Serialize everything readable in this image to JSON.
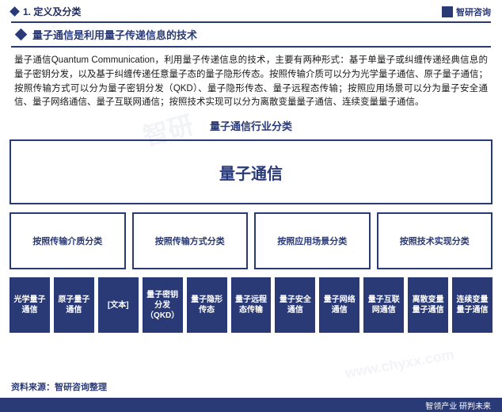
{
  "colors": {
    "brand": "#2a3a77",
    "text": "#1a1a1a",
    "white": "#ffffff"
  },
  "header": {
    "section_number": "1. 定义及分类",
    "brand_name": "智研咨询"
  },
  "subtitle": "量子通信是利用量子传递信息的技术",
  "body": "量子通信Quantum Communication，利用量子传递信息的技术，主要有两种形式：基于单量子或纠缠传递经典信息的量子密钥分发，以及基于纠缠传递任意量子态的量子隐形传态。按照传输介质可以分为光学量子通信、原子量子通信；按照传输方式可以分为量子密钥分发（QKD）、量子隐形传态、量子远程态传输；按照应用场景可以分为量子安全通信、量子网络通信、量子互联网通信；按照技术实现可以分为离散变量量子通信、连续变量量子通信。",
  "chart": {
    "title": "量子通信行业分类",
    "root": "量子通信",
    "level2": [
      "按照传输介质分类",
      "按照传输方式分类",
      "按照应用场景分类",
      "按照技术实现分类"
    ],
    "level3": [
      "光学量子通信",
      "原子量子通信",
      "[文本]",
      "量子密钥分发（QKD）",
      "量子隐形传态",
      "量子远程态传输",
      "量子安全通信",
      "量子网络通信",
      "量子互联网通信",
      "离散变量量子通信",
      "连续变量量子通信"
    ],
    "box_border_color": "#2a3a77",
    "level3_bg": "#2a3a77",
    "level3_text_color": "#ffffff"
  },
  "source": "资料来源：智研咨询整理",
  "footer": "智领产业 研判未来",
  "watermark": "智研"
}
